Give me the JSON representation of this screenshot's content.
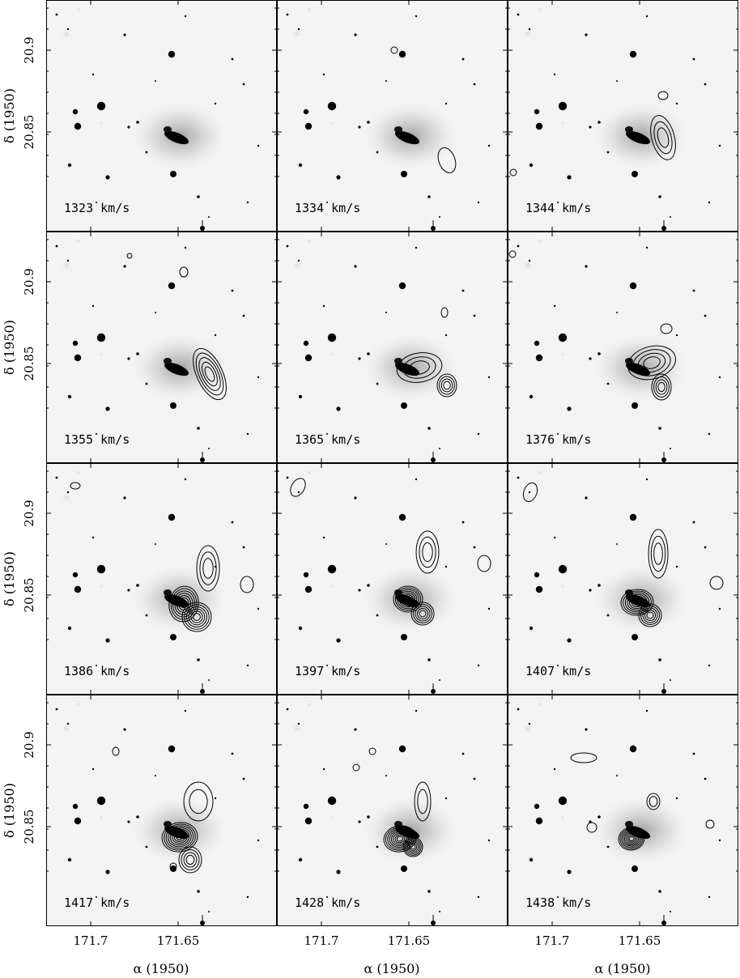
{
  "figure": {
    "panels": [
      {
        "velocity": "1323 km/s"
      },
      {
        "velocity": "1334 km/s"
      },
      {
        "velocity": "1344 km/s"
      },
      {
        "velocity": "1355 km/s"
      },
      {
        "velocity": "1365 km/s"
      },
      {
        "velocity": "1376 km/s"
      },
      {
        "velocity": "1386 km/s"
      },
      {
        "velocity": "1397 km/s"
      },
      {
        "velocity": "1407 km/s"
      },
      {
        "velocity": "1417 km/s"
      },
      {
        "velocity": "1428 km/s"
      },
      {
        "velocity": "1438 km/s"
      }
    ],
    "y_axis_title": "δ (1950)",
    "y_tick_labels": [
      "20.9",
      "20.85"
    ],
    "x_axis_title": "α (1950)",
    "x_tick_labels": [
      "171.7",
      "171.65"
    ]
  }
}
